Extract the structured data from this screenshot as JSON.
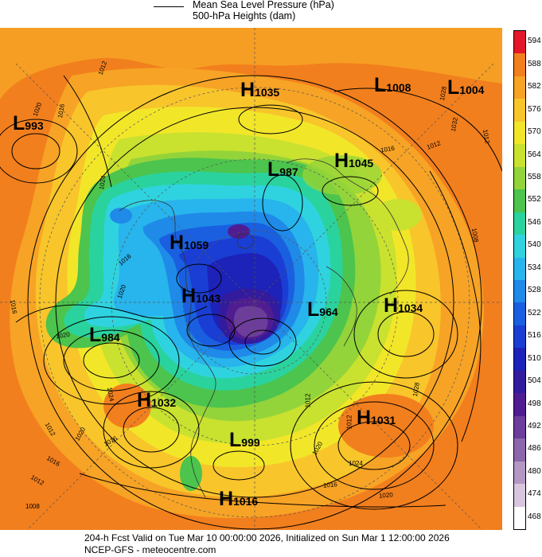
{
  "legend": {
    "line1": "Mean Sea Level Pressure (hPa)",
    "line2": "500-hPa Heights (dam)"
  },
  "colorbar": {
    "levels": [
      "594",
      "588",
      "582",
      "576",
      "570",
      "564",
      "558",
      "552",
      "546",
      "540",
      "534",
      "528",
      "522",
      "516",
      "510",
      "504",
      "498",
      "492",
      "486",
      "480",
      "474",
      "468"
    ],
    "colors": [
      "#e4172a",
      "#f27f1d",
      "#f7a325",
      "#f8c52b",
      "#f2e629",
      "#c9e12f",
      "#93d43a",
      "#4cc44d",
      "#2ad39d",
      "#2fd3e0",
      "#28b4ec",
      "#1f8ae8",
      "#1a5fe0",
      "#1a3ed3",
      "#1d22b8",
      "#331b9d",
      "#501c92",
      "#6c3d9a",
      "#8d67ac",
      "#b597c4",
      "#d8c6df",
      "#ffffff"
    ]
  },
  "pressure_centers": [
    {
      "type": "L",
      "value": "993"
    },
    {
      "type": "H",
      "value": "1035"
    },
    {
      "type": "L",
      "value": "1008"
    },
    {
      "type": "L",
      "value": "1004"
    },
    {
      "type": "L",
      "value": "987"
    },
    {
      "type": "H",
      "value": "1045"
    },
    {
      "type": "H",
      "value": "1059"
    },
    {
      "type": "H",
      "value": "1043"
    },
    {
      "type": "L",
      "value": "964"
    },
    {
      "type": "H",
      "value": "1034"
    },
    {
      "type": "L",
      "value": "984"
    },
    {
      "type": "H",
      "value": "1032"
    },
    {
      "type": "H",
      "value": "1031"
    },
    {
      "type": "L",
      "value": "999"
    },
    {
      "type": "H",
      "value": "1016"
    }
  ],
  "isobar_labels": [
    "1012",
    "1016",
    "1020",
    "1024",
    "1028",
    "1032",
    "1012",
    "1016",
    "1008",
    "1012",
    "1020",
    "1016",
    "1024",
    "1020",
    "1016",
    "1012",
    "1020",
    "1016",
    "1012",
    "1012",
    "1016",
    "1020",
    "1024",
    "1028",
    "1020",
    "1016",
    "1012",
    "1008"
  ],
  "footer": {
    "line1": "204-h Fcst Valid on Tue Mar 10 00:00:00 2026, Initialized on Sun Mar  1 12:00:00 2026",
    "line2": "NCEP-GFS  - meteocentre.com"
  }
}
